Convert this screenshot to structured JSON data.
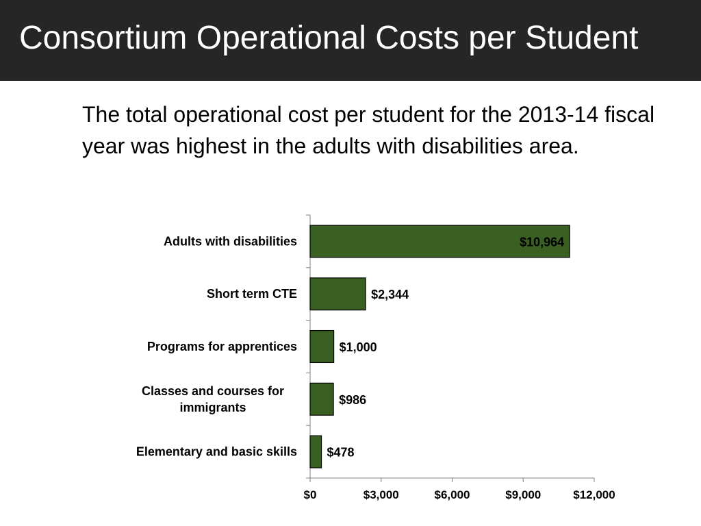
{
  "slide": {
    "title": "Consortium Operational Costs per Student",
    "subtitle": "The total operational cost per student for the 2013-14 fiscal year was highest in the adults with disabilities area."
  },
  "colors": {
    "header_bg": "#262626",
    "bar_fill": "#3a5f22",
    "bar_stroke": "#000000"
  },
  "chart_data": {
    "type": "bar",
    "orientation": "horizontal",
    "categories": [
      [
        "Adults with disabilities"
      ],
      [
        "Short term CTE"
      ],
      [
        "Programs for apprentices"
      ],
      [
        "Classes and courses for",
        "immigrants"
      ],
      [
        "Elementary and basic skills"
      ]
    ],
    "values": [
      10964,
      2344,
      1000,
      986,
      478
    ],
    "data_labels": [
      "$10,964",
      "$2,344",
      "$1,000",
      "$986",
      "$478"
    ],
    "xlim": [
      0,
      12000
    ],
    "x_ticks": [
      0,
      3000,
      6000,
      9000,
      12000
    ],
    "x_tick_labels": [
      "$0",
      "$3,000",
      "$6,000",
      "$9,000",
      "$12,000"
    ],
    "xlabel": "",
    "ylabel": "",
    "grid": false,
    "legend": "none"
  }
}
